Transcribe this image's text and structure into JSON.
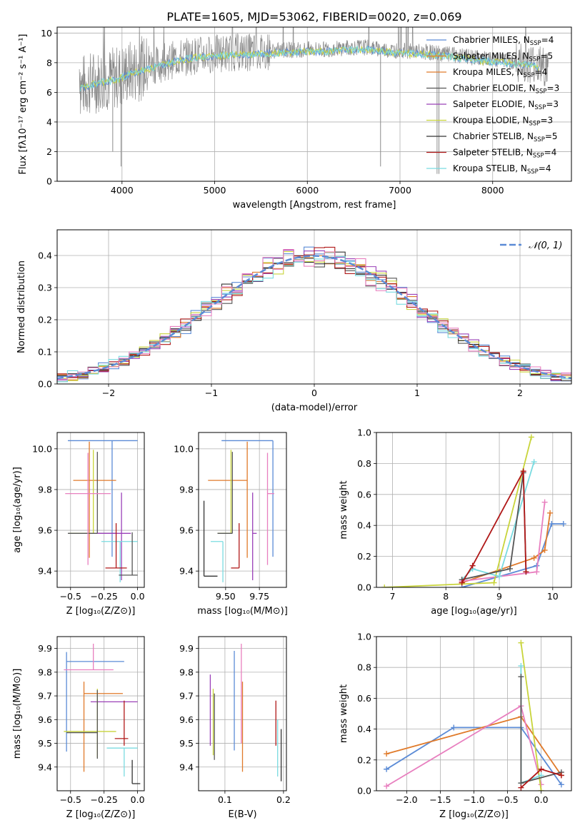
{
  "title": "PLATE=1605, MJD=53062, FIBERID=0020, z=0.069",
  "colors": {
    "Chabrier MILES": "#5b8bd6",
    "Salpeter MILES": "#e07a2a",
    "Kroupa MILES": "#e07a2a",
    "Chabrier ELODIE": "#555555",
    "Salpeter ELODIE": "#9a40b8",
    "Kroupa ELODIE": "#c8d43a",
    "Chabrier STELIB": "#333333",
    "Salpeter STELIB": "#b01818",
    "Kroupa STELIB": "#79dbe0",
    "pink": "#e87fbf",
    "grey": "#8a8a8a"
  },
  "chart_data": [
    {
      "id": "spectrum",
      "type": "line",
      "title": "PLATE=1605, MJD=53062, FIBERID=0020, z=0.069",
      "xlabel": "wavelength [Angstrom, rest frame]",
      "ylabel": "Flux [fλ10⁻¹⁷ erg cm⁻² s⁻¹ A⁻¹]",
      "xlim": [
        3300,
        8850
      ],
      "ylim": [
        0,
        10.4
      ],
      "xticks": [
        4000,
        5000,
        6000,
        7000,
        8000
      ],
      "yticks": [
        0,
        2,
        4,
        6,
        8,
        10
      ],
      "legend": [
        {
          "label": "Chabrier MILES, N",
          "sub": "SSP",
          "tail": "=4",
          "color": "#5b8bd6"
        },
        {
          "label": "Salpeter MILES, N",
          "sub": "SSP",
          "tail": "=5",
          "color": "#e07a2a"
        },
        {
          "label": "Kroupa MILES, N",
          "sub": "SSP",
          "tail": "=4",
          "color": "#e07a2a"
        },
        {
          "label": "Chabrier ELODIE, N",
          "sub": "SSP",
          "tail": "=3",
          "color": "#555555"
        },
        {
          "label": "Salpeter ELODIE, N",
          "sub": "SSP",
          "tail": "=3",
          "color": "#9a40b8"
        },
        {
          "label": "Kroupa ELODIE, N",
          "sub": "SSP",
          "tail": "=3",
          "color": "#c8d43a"
        },
        {
          "label": "Chabrier STELIB, N",
          "sub": "SSP",
          "tail": "=5",
          "color": "#333333"
        },
        {
          "label": "Salpeter STELIB, N",
          "sub": "SSP",
          "tail": "=4",
          "color": "#b01818"
        },
        {
          "label": "Kroupa STELIB, N",
          "sub": "SSP",
          "tail": "=4",
          "color": "#79dbe0"
        }
      ],
      "continuum": [
        [
          3550,
          6.4
        ],
        [
          3700,
          6.7
        ],
        [
          3850,
          6.9
        ],
        [
          3950,
          7.0
        ],
        [
          4050,
          7.3
        ],
        [
          4200,
          7.6
        ],
        [
          4400,
          7.9
        ],
        [
          4600,
          8.3
        ],
        [
          4800,
          8.5
        ],
        [
          5000,
          8.6
        ],
        [
          5200,
          8.7
        ],
        [
          5400,
          8.7
        ],
        [
          5600,
          8.8
        ],
        [
          5800,
          8.85
        ],
        [
          6000,
          8.9
        ],
        [
          6200,
          8.9
        ],
        [
          6400,
          9.0
        ],
        [
          6600,
          9.05
        ],
        [
          6800,
          8.9
        ],
        [
          7000,
          8.8
        ],
        [
          7200,
          8.75
        ],
        [
          7400,
          8.65
        ],
        [
          7600,
          8.5
        ],
        [
          7800,
          8.35
        ],
        [
          8000,
          8.2
        ],
        [
          8200,
          8.1
        ],
        [
          8450,
          7.95
        ],
        [
          8600,
          7.6
        ]
      ]
    },
    {
      "id": "residuals",
      "type": "bar",
      "xlabel": "(data-model)/error",
      "ylabel": "Normed distribution",
      "xlim": [
        -2.5,
        2.5
      ],
      "ylim": [
        0,
        0.48
      ],
      "xticks": [
        -2,
        -1,
        0,
        1,
        2
      ],
      "yticks": [
        0.0,
        0.1,
        0.2,
        0.3,
        0.4
      ],
      "legend": "𝒩(0, 1)",
      "bin_width": 0.1
    },
    {
      "id": "age_vs_Z",
      "type": "scatter",
      "xlabel": "Z [log₁₀(Z/Z⊙)]",
      "ylabel": "age  [log₁₀(age/yr)]",
      "xlim": [
        -0.6,
        0.05
      ],
      "ylim": [
        9.32,
        10.08
      ],
      "xticks": [
        -0.5,
        -0.25,
        0.0
      ],
      "yticks": [
        9.4,
        9.6,
        9.8,
        10.0
      ],
      "points": [
        {
          "color": "#5b8bd6",
          "x": -0.19,
          "xerr": [
            0.33,
            0.19
          ],
          "y": 10.04,
          "yerr": [
            0.57,
            0.0
          ]
        },
        {
          "color": "#e07a2a",
          "x": -0.36,
          "xerr": [
            0.12,
            0.2
          ],
          "y": 9.845,
          "yerr": [
            0.38,
            0.19
          ]
        },
        {
          "color": "#c8d43a",
          "x": -0.33,
          "xerr": [
            0.18,
            0.01
          ],
          "y": 9.585,
          "yerr": [
            0.0,
            0.41
          ]
        },
        {
          "color": "#555555",
          "x": -0.3,
          "xerr": [
            0.22,
            0.14
          ],
          "y": 9.585,
          "yerr": [
            0.0,
            0.4
          ]
        },
        {
          "color": "#e87fbf",
          "x": -0.37,
          "xerr": [
            0.17,
            0.17
          ],
          "y": 9.78,
          "yerr": [
            0.35,
            0.2
          ]
        },
        {
          "color": "#9a40b8",
          "x": -0.12,
          "xerr": [
            0.18,
            0.07
          ],
          "y": 9.585,
          "yerr": [
            0.23,
            0.2
          ]
        },
        {
          "color": "#79dbe0",
          "x": -0.13,
          "xerr": [
            0.14,
            0.13
          ],
          "y": 9.545,
          "yerr": [
            0.2,
            0.0
          ]
        },
        {
          "color": "#b01818",
          "x": -0.16,
          "xerr": [
            0.08,
            0.08
          ],
          "y": 9.415,
          "yerr": [
            0.0,
            0.22
          ]
        },
        {
          "color": "#555555",
          "x": -0.04,
          "xerr": [
            0.1,
            0.04
          ],
          "y": 9.38,
          "yerr": [
            0.0,
            0.21
          ]
        }
      ]
    },
    {
      "id": "age_vs_mass",
      "type": "scatter",
      "xlabel": "mass [log₁₀(M/M⊙)]",
      "ylabel": "",
      "xlim": [
        9.3,
        9.95
      ],
      "ylim": [
        9.32,
        10.08
      ],
      "xticks": [
        9.5,
        9.75
      ],
      "yticks": [
        9.4,
        9.6,
        9.8,
        10.0
      ],
      "points": [
        {
          "color": "#5b8bd6",
          "x": 9.85,
          "xerr": [
            0.38,
            0.0
          ],
          "y": 10.04,
          "yerr": [
            0.57,
            0.0
          ]
        },
        {
          "color": "#e07a2a",
          "x": 9.66,
          "xerr": [
            0.29,
            0.0
          ],
          "y": 9.845,
          "yerr": [
            0.38,
            0.19
          ]
        },
        {
          "color": "#c8d43a",
          "x": 9.54,
          "xerr": [
            0.1,
            0.0
          ],
          "y": 9.585,
          "yerr": [
            0.0,
            0.41
          ]
        },
        {
          "color": "#555555",
          "x": 9.55,
          "xerr": [
            0.11,
            0.0
          ],
          "y": 9.585,
          "yerr": [
            0.0,
            0.4
          ]
        },
        {
          "color": "#e87fbf",
          "x": 9.81,
          "xerr": [
            0.0,
            0.05
          ],
          "y": 9.78,
          "yerr": [
            0.35,
            0.2
          ]
        },
        {
          "color": "#9a40b8",
          "x": 9.7,
          "xerr": [
            0.0,
            0.03
          ],
          "y": 9.585,
          "yerr": [
            0.23,
            0.2
          ]
        },
        {
          "color": "#79dbe0",
          "x": 9.48,
          "xerr": [
            0.09,
            0.0
          ],
          "y": 9.545,
          "yerr": [
            0.2,
            0.0
          ]
        },
        {
          "color": "#b01818",
          "x": 9.6,
          "xerr": [
            0.06,
            0.0
          ],
          "y": 9.415,
          "yerr": [
            0.0,
            0.22
          ]
        },
        {
          "color": "#333333",
          "x": 9.34,
          "xerr": [
            0.0,
            0.1
          ],
          "y": 9.375,
          "yerr": [
            0.0,
            0.37
          ]
        }
      ]
    },
    {
      "id": "weight_vs_age",
      "type": "line",
      "xlabel": "age  [log₁₀(age/yr)]",
      "ylabel": "mass weight",
      "xlim": [
        6.7,
        10.35
      ],
      "ylim": [
        0,
        1.0
      ],
      "xticks": [
        7,
        8,
        9,
        10
      ],
      "yticks": [
        0.0,
        0.2,
        0.4,
        0.6,
        0.8,
        1.0
      ],
      "series": [
        {
          "color": "#5b8bd6",
          "points": [
            [
              8.3,
              0.0
            ],
            [
              9.7,
              0.14
            ],
            [
              9.98,
              0.41
            ],
            [
              10.2,
              0.41
            ]
          ]
        },
        {
          "color": "#e07a2a",
          "points": [
            [
              8.3,
              0.03
            ],
            [
              9.65,
              0.19
            ],
            [
              9.85,
              0.24
            ],
            [
              9.95,
              0.48
            ]
          ]
        },
        {
          "color": "#e87fbf",
          "points": [
            [
              8.3,
              0.04
            ],
            [
              9.7,
              0.1
            ],
            [
              9.85,
              0.55
            ]
          ]
        },
        {
          "color": "#c8d43a",
          "points": [
            [
              6.85,
              0.0
            ],
            [
              8.9,
              0.03
            ],
            [
              9.6,
              0.97
            ]
          ]
        },
        {
          "color": "#79dbe0",
          "points": [
            [
              8.3,
              0.05
            ],
            [
              8.5,
              0.12
            ],
            [
              9.0,
              0.07
            ],
            [
              9.65,
              0.81
            ]
          ]
        },
        {
          "color": "#555555",
          "points": [
            [
              8.3,
              0.05
            ],
            [
              9.2,
              0.12
            ],
            [
              9.45,
              0.74
            ],
            [
              9.5,
              0.1
            ]
          ]
        },
        {
          "color": "#b01818",
          "points": [
            [
              8.3,
              0.03
            ],
            [
              8.5,
              0.14
            ],
            [
              9.45,
              0.75
            ],
            [
              9.5,
              0.1
            ]
          ]
        }
      ]
    },
    {
      "id": "mass_vs_Z",
      "type": "scatter",
      "xlabel": "Z [log₁₀(Z/Z⊙)]",
      "ylabel": "mass [log₁₀(M/M⊙)]",
      "xlim": [
        -0.6,
        0.05
      ],
      "ylim": [
        9.3,
        9.95
      ],
      "xticks": [
        -0.5,
        -0.25,
        0.0
      ],
      "yticks": [
        9.4,
        9.5,
        9.6,
        9.7,
        9.8,
        9.9
      ],
      "points": [
        {
          "color": "#5b8bd6",
          "x": -0.53,
          "xerr": [
            0.0,
            0.43
          ],
          "y": 9.845,
          "yerr": [
            0.38,
            0.04
          ]
        },
        {
          "color": "#e07a2a",
          "x": -0.4,
          "xerr": [
            0.0,
            0.29
          ],
          "y": 9.71,
          "yerr": [
            0.33,
            0.05
          ]
        },
        {
          "color": "#e87fbf",
          "x": -0.33,
          "xerr": [
            0.22,
            0.15
          ],
          "y": 9.81,
          "yerr": [
            0.0,
            0.11
          ]
        },
        {
          "color": "#9a40b8",
          "x": -0.15,
          "xerr": [
            0.2,
            0.15
          ],
          "y": 9.675,
          "yerr": [
            0.0,
            0.0
          ]
        },
        {
          "color": "#c8d43a",
          "x": -0.3,
          "xerr": [
            0.25,
            0.14
          ],
          "y": 9.55,
          "yerr": [
            0.11,
            0.18
          ]
        },
        {
          "color": "#555555",
          "x": -0.3,
          "xerr": [
            0.23,
            0.0
          ],
          "y": 9.545,
          "yerr": [
            0.11,
            0.18
          ]
        },
        {
          "color": "#b01818",
          "x": -0.1,
          "xerr": [
            0.07,
            0.03
          ],
          "y": 9.52,
          "yerr": [
            0.03,
            0.16
          ]
        },
        {
          "color": "#79dbe0",
          "x": -0.1,
          "xerr": [
            0.13,
            0.1
          ],
          "y": 9.48,
          "yerr": [
            0.12,
            0.0
          ]
        },
        {
          "color": "#333333",
          "x": -0.04,
          "xerr": [
            0.0,
            0.06
          ],
          "y": 9.33,
          "yerr": [
            0.0,
            0.1
          ]
        }
      ]
    },
    {
      "id": "mass_vs_ebv",
      "type": "scatter",
      "xlabel": "E(B-V)",
      "ylabel": "",
      "xlim": [
        0.055,
        0.205
      ],
      "ylim": [
        9.3,
        9.95
      ],
      "xticks": [
        0.1,
        0.2
      ],
      "yticks": [
        9.4,
        9.5,
        9.6,
        9.7,
        9.8,
        9.9
      ],
      "points": [
        {
          "color": "#9a40b8",
          "x": 0.075,
          "y0": 9.49,
          "y1": 9.79
        },
        {
          "color": "#c8d43a",
          "x": 0.08,
          "y0": 9.45,
          "y1": 9.73
        },
        {
          "color": "#555555",
          "x": 0.082,
          "y0": 9.43,
          "y1": 9.71
        },
        {
          "color": "#5b8bd6",
          "x": 0.116,
          "y0": 9.47,
          "y1": 9.89
        },
        {
          "color": "#e07a2a",
          "x": 0.13,
          "y0": 9.38,
          "y1": 9.76
        },
        {
          "color": "#e87fbf",
          "x": 0.128,
          "y0": 9.5,
          "y1": 9.92
        },
        {
          "color": "#b01818",
          "x": 0.187,
          "y0": 9.49,
          "y1": 9.68
        },
        {
          "color": "#79dbe0",
          "x": 0.19,
          "y0": 9.36,
          "y1": 9.6
        },
        {
          "color": "#333333",
          "x": 0.196,
          "y0": 9.34,
          "y1": 9.56
        }
      ]
    },
    {
      "id": "weight_vs_Z",
      "type": "line",
      "xlabel": "Z [log₁₀(Z/Z⊙)]",
      "ylabel": "mass weight",
      "xlim": [
        -2.45,
        0.45
      ],
      "ylim": [
        0,
        1.0
      ],
      "xticks": [
        -2.0,
        -1.5,
        -1.0,
        -0.5,
        0.0
      ],
      "yticks": [
        0.0,
        0.2,
        0.4,
        0.6,
        0.8,
        1.0
      ],
      "series": [
        {
          "color": "#5b8bd6",
          "points": [
            [
              -2.3,
              0.14
            ],
            [
              -1.3,
              0.41
            ],
            [
              -0.3,
              0.41
            ],
            [
              0.3,
              0.04
            ]
          ]
        },
        {
          "color": "#e07a2a",
          "points": [
            [
              -2.3,
              0.24
            ],
            [
              -0.3,
              0.48
            ],
            [
              0.3,
              0.1
            ]
          ]
        },
        {
          "color": "#e87fbf",
          "points": [
            [
              -2.3,
              0.03
            ],
            [
              -0.3,
              0.55
            ],
            [
              0.0,
              0.04
            ]
          ]
        },
        {
          "color": "#c8d43a",
          "points": [
            [
              -0.3,
              0.96
            ],
            [
              0.0,
              0.0
            ]
          ]
        },
        {
          "color": "#79dbe0",
          "points": [
            [
              -0.3,
              0.81
            ],
            [
              -0.3,
              0.05
            ],
            [
              0.0,
              0.1
            ]
          ]
        },
        {
          "color": "#555555",
          "points": [
            [
              -0.3,
              0.74
            ],
            [
              -0.3,
              0.05
            ],
            [
              0.3,
              0.12
            ]
          ]
        },
        {
          "color": "#b01818",
          "points": [
            [
              -0.3,
              0.02
            ],
            [
              0.0,
              0.14
            ],
            [
              0.3,
              0.1
            ]
          ]
        }
      ]
    }
  ]
}
